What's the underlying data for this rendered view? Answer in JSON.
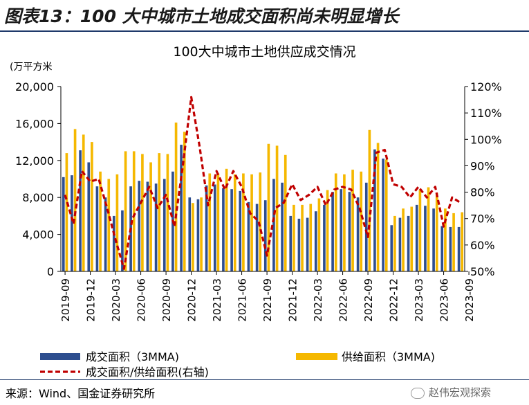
{
  "figure_title": "图表13：100 大中城市土地成交面积尚未明显增长",
  "source_text": "来源：Wind、国金证券研究所",
  "watermark_text": "赵伟宏观探索",
  "colors": {
    "bar_deal": "#2e4e8f",
    "bar_supply": "#f5b800",
    "ratio_line": "#c00000",
    "rule": "#1f3a6b"
  },
  "chart_data": {
    "type": "bar",
    "title": "100大中城市土地供应成交情况",
    "y_unit_label": "(万平方米",
    "ylim": [
      0,
      20000
    ],
    "y_ticks": [
      "0",
      "4,000",
      "8,000",
      "12,000",
      "16,000",
      "20,000"
    ],
    "y2lim": [
      0.5,
      1.2
    ],
    "y2_ticks": [
      "50%",
      "60%",
      "70%",
      "80%",
      "90%",
      "100%",
      "110%",
      "120%"
    ],
    "x_tick_labels": [
      "2019-09",
      "2019-12",
      "2020-03",
      "2020-06",
      "2020-09",
      "2020-12",
      "2021-03",
      "2021-06",
      "2021-09",
      "2021-12",
      "2022-03",
      "2022-06",
      "2022-09",
      "2022-12",
      "2023-03",
      "2023-06",
      "2023-09"
    ],
    "x_tick_every": 3,
    "grid": false,
    "legend_position": "bottom",
    "series": [
      {
        "name": "成交面积（3MMA)",
        "kind": "bar",
        "axis": "left",
        "values": [
          10200,
          10400,
          13100,
          11800,
          9200,
          8000,
          6000,
          6600,
          9200,
          9800,
          9700,
          9500,
          10000,
          10800,
          13700,
          8000,
          7800,
          9300,
          9400,
          9000,
          8900,
          8700,
          7500,
          7300,
          7700,
          10000,
          9600,
          6000,
          5700,
          5800,
          6500,
          7200,
          8600,
          8900,
          8600,
          8000,
          9600,
          13200,
          12200,
          5000,
          5800,
          6000,
          7200,
          7100,
          6800,
          4900,
          4800,
          4800
        ]
      },
      {
        "name": "供给面积（3MMA)",
        "kind": "bar",
        "axis": "left",
        "values": [
          12800,
          15400,
          14800,
          14000,
          10800,
          10000,
          10500,
          13000,
          13000,
          12700,
          11800,
          12800,
          12700,
          16100,
          15100,
          7400,
          8000,
          10600,
          10600,
          11100,
          10500,
          10600,
          10500,
          10700,
          13800,
          13600,
          12600,
          7200,
          7200,
          7300,
          7900,
          8800,
          10600,
          10500,
          11000,
          10800,
          15300,
          13900,
          12100,
          6000,
          6800,
          7000,
          8800,
          9100,
          8500,
          6800,
          6300,
          6400
        ]
      },
      {
        "name": "成交面积/供给面积(右轴)",
        "kind": "line",
        "axis": "right",
        "values": [
          0.79,
          0.68,
          0.88,
          0.84,
          0.85,
          0.74,
          0.62,
          0.51,
          0.7,
          0.76,
          0.82,
          0.74,
          0.79,
          0.67,
          0.9,
          1.16,
          0.97,
          0.75,
          0.88,
          0.81,
          0.88,
          0.82,
          0.72,
          0.69,
          0.56,
          0.74,
          0.76,
          0.83,
          0.77,
          0.79,
          0.82,
          0.75,
          0.81,
          0.82,
          0.81,
          0.74,
          0.63,
          0.95,
          0.96,
          0.83,
          0.82,
          0.78,
          0.82,
          0.78,
          0.82,
          0.67,
          0.78,
          0.76
        ]
      }
    ]
  }
}
